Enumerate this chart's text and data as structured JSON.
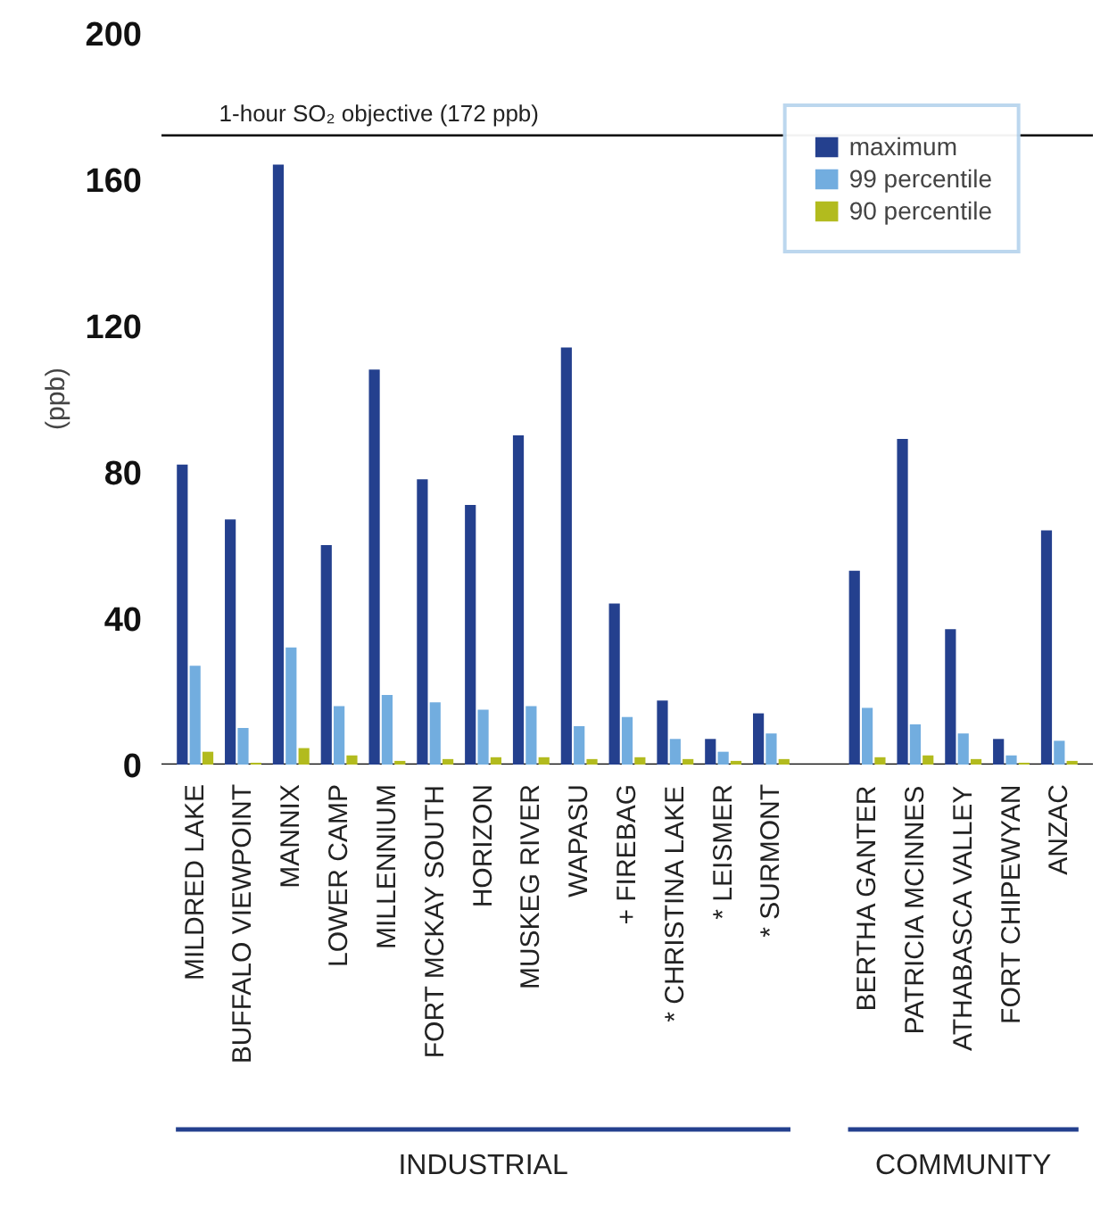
{
  "chart_data": {
    "type": "bar",
    "ylabel": "(ppb)",
    "categories": [
      "MILDRED LAKE",
      "BUFFALO VIEWPOINT",
      "MANNIX",
      "LOWER CAMP",
      "MILLENNIUM",
      "FORT MCKAY SOUTH",
      "HORIZON",
      "MUSKEG RIVER",
      "WAPASU",
      "+ FIREBAG",
      "* CHRISTINA LAKE",
      "* LEISMER",
      "* SURMONT",
      null,
      "BERTHA GANTER",
      "PATRICIA MCINNES",
      "ATHABASCA VALLEY",
      "FORT CHIPEWYAN",
      "ANZAC"
    ],
    "series": [
      {
        "name": "maximum",
        "color": "#24408e",
        "values": [
          82,
          67,
          164,
          60,
          108,
          78,
          71,
          90,
          114,
          44,
          17.5,
          7,
          14,
          null,
          53,
          89,
          37,
          7,
          64
        ]
      },
      {
        "name": "99 percentile",
        "color": "#72addf",
        "values": [
          27,
          10,
          32,
          16,
          19,
          17,
          15,
          16,
          10.5,
          13,
          7,
          3.5,
          8.5,
          null,
          15.5,
          11,
          8.5,
          2.5,
          6.5
        ]
      },
      {
        "name": "90 percentile",
        "color": "#b2bb1e",
        "values": [
          3.5,
          0.5,
          4.5,
          2.5,
          1,
          1.5,
          2,
          2,
          1.5,
          2,
          1.5,
          1,
          1.5,
          null,
          2,
          2.5,
          1.5,
          0.5,
          1
        ]
      }
    ],
    "ylim": [
      0,
      200
    ],
    "yticks": [
      0,
      40,
      80,
      120,
      160,
      200
    ],
    "ref_lines": [
      {
        "axis": "y",
        "value": 172,
        "label": "1-hour SO₂ objective (172 ppb)",
        "color": "#000000"
      }
    ],
    "annotations": [
      "INDUSTRIAL",
      "COMMUNITY"
    ],
    "legend": "top right",
    "grid": false
  }
}
